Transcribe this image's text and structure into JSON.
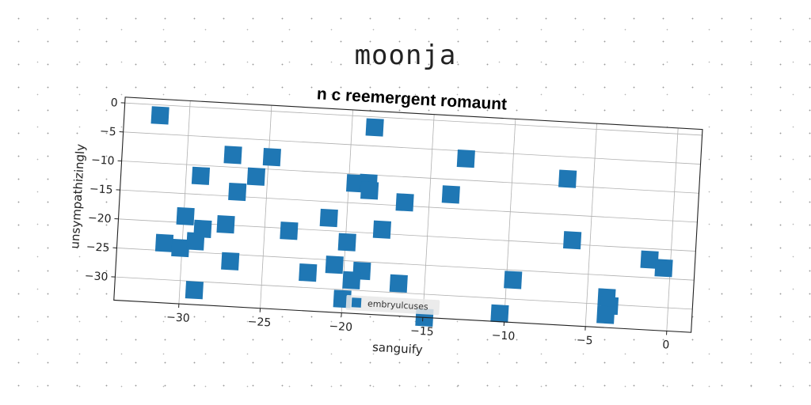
{
  "suptitle": "moonja",
  "chart_data": {
    "type": "scatter",
    "title": "n c reemergent romaunt",
    "xlabel": "sanguify",
    "ylabel": "unsympathizingly",
    "xlim": [
      -34,
      1.5
    ],
    "ylim": [
      -34,
      1
    ],
    "xticks": [
      -30,
      -25,
      -20,
      -15,
      -10,
      -5,
      0
    ],
    "yticks": [
      0,
      -5,
      -10,
      -15,
      -20,
      -25,
      -30
    ],
    "xtick_labels": [
      "−30",
      "−25",
      "−20",
      "−15",
      "−10",
      "−5",
      "0"
    ],
    "ytick_labels": [
      "0",
      "−5",
      "−10",
      "−15",
      "−20",
      "−25",
      "−30"
    ],
    "grid": true,
    "legend_position": "bottom-center",
    "marker": "square",
    "colors": {
      "series": "#1f77b4",
      "grid": "#b0b0b0"
    },
    "series": [
      {
        "name": "embryulcuses",
        "points": [
          [
            -31.8,
            -1.8
          ],
          [
            -18.6,
            -1.8
          ],
          [
            -12.9,
            -6.3
          ],
          [
            -6.6,
            -8.8
          ],
          [
            -27.2,
            -7.9
          ],
          [
            -24.8,
            -7.9
          ],
          [
            -29.1,
            -11.8
          ],
          [
            -25.7,
            -11.4
          ],
          [
            -19.6,
            -11.6
          ],
          [
            -18.8,
            -11.4
          ],
          [
            -18.7,
            -12.7
          ],
          [
            -13.7,
            -12.6
          ],
          [
            -26.8,
            -14.2
          ],
          [
            -16.5,
            -14.4
          ],
          [
            -29.9,
            -18.9
          ],
          [
            -27.4,
            -19.9
          ],
          [
            -28.8,
            -20.9
          ],
          [
            -23.5,
            -20.4
          ],
          [
            -21.1,
            -17.8
          ],
          [
            -17.8,
            -19.3
          ],
          [
            -6.1,
            -19.3
          ],
          [
            -1.3,
            -21.9
          ],
          [
            -0.4,
            -23.2
          ],
          [
            -31.1,
            -23.7
          ],
          [
            -30.1,
            -24.4
          ],
          [
            -29.2,
            -23.1
          ],
          [
            -27.0,
            -26.2
          ],
          [
            -22.2,
            -27.4
          ],
          [
            -20.6,
            -25.8
          ],
          [
            -19.9,
            -21.8
          ],
          [
            -18.9,
            -26.6
          ],
          [
            -19.5,
            -28.3
          ],
          [
            -16.6,
            -28.4
          ],
          [
            -9.6,
            -26.7
          ],
          [
            -3.8,
            -28.8
          ],
          [
            -3.6,
            -30.2
          ],
          [
            -3.8,
            -31.8
          ],
          [
            -29.1,
            -31.5
          ],
          [
            -20.0,
            -31.6
          ],
          [
            -10.3,
            -32.6
          ],
          [
            -14.9,
            -34.0
          ]
        ]
      }
    ]
  }
}
